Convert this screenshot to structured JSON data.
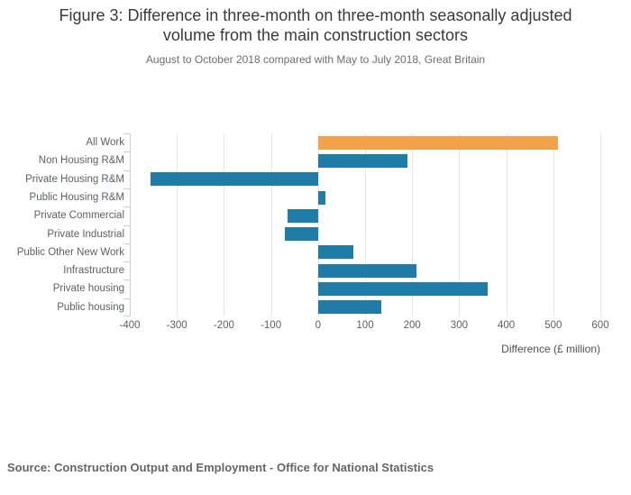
{
  "header": {
    "title": "Figure 3: Difference in three-month on three-month seasonally adjusted volume from the main construction sectors",
    "subtitle": "August to October 2018 compared with May to July 2018, Great Britain"
  },
  "chart_data": {
    "type": "bar",
    "orientation": "horizontal",
    "title": "Figure 3: Difference in three-month on three-month seasonally adjusted volume from the main construction sectors",
    "subtitle": "August to October 2018 compared with May to July 2018, Great Britain",
    "categories": [
      "All Work",
      "Non Housing R&M",
      "Private Housing R&M",
      "Public Housing R&M",
      "Private Commercial",
      "Private Industrial",
      "Public Other New Work",
      "Infrastructure",
      "Private housing",
      "Public housing"
    ],
    "values": [
      510,
      190,
      -355,
      15,
      -65,
      -70,
      75,
      210,
      360,
      135
    ],
    "highlight_category": "All Work",
    "bar_color": "#1e7ca6",
    "highlight_color": "#f2a24a",
    "xlabel": "Difference (£ million)",
    "ylabel": "",
    "xlim": [
      -400,
      600
    ],
    "xticks": [
      -400,
      -300,
      -200,
      -100,
      0,
      100,
      200,
      300,
      400,
      500,
      600
    ],
    "grid": "vertical-on",
    "legend": "none"
  },
  "footer": {
    "source": "Source: Construction Output and Employment - Office for National Statistics"
  }
}
